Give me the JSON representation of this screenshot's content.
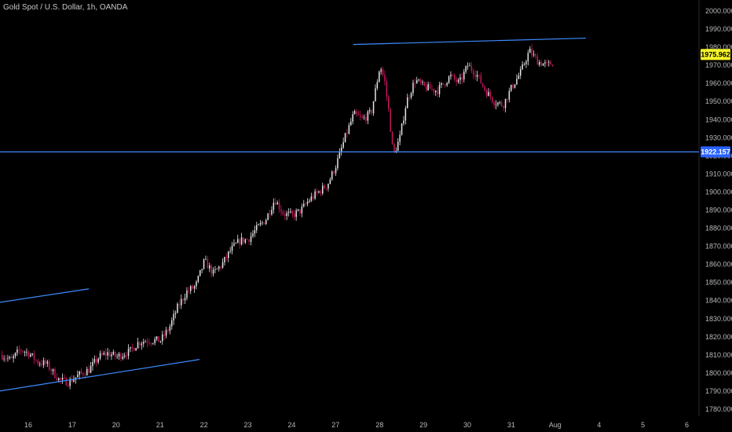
{
  "header": {
    "title": "Gold Spot / U.S. Dollar, 1h, OANDA"
  },
  "chart_data": {
    "type": "candlestick",
    "title": "Gold Spot / U.S. Dollar, 1h, OANDA",
    "y_ticks": [
      "2000.000",
      "1990.000",
      "1980.000",
      "1970.000",
      "1960.000",
      "1950.000",
      "1940.000",
      "1930.000",
      "1920.000",
      "1910.000",
      "1900.000",
      "1890.000",
      "1880.000",
      "1870.000",
      "1860.000",
      "1850.000",
      "1840.000",
      "1830.000",
      "1820.000",
      "1810.000",
      "1800.000",
      "1790.000",
      "1780.000"
    ],
    "x_ticks": [
      "16",
      "17",
      "20",
      "21",
      "22",
      "23",
      "24",
      "27",
      "28",
      "29",
      "30",
      "31",
      "Aug",
      "4",
      "5",
      "6"
    ],
    "ylim": [
      1776,
      2003
    ],
    "price_labels": [
      {
        "text": "1975.962",
        "value": 1975.962,
        "bg": "#f5f52a",
        "fg": "#000000"
      },
      {
        "text": "1922.157",
        "value": 1922.157,
        "bg": "#2962ff",
        "fg": "#ffffff"
      }
    ],
    "lines": [
      {
        "name": "resistance-trendline",
        "x1": 7.4,
        "y1": 1981.5,
        "x2": 12.7,
        "y2": 1985.0,
        "color": "#3d8bfd"
      },
      {
        "name": "horizontal-support-line",
        "x1": -0.8,
        "y1": 1922.157,
        "x2": 16.5,
        "y2": 1922.157,
        "color": "#3d8bfd"
      },
      {
        "name": "upper-channel-line",
        "x1": -0.8,
        "y1": 1838.5,
        "x2": 1.38,
        "y2": 1846.5,
        "color": "#3d8bfd"
      },
      {
        "name": "lower-channel-line",
        "x1": -0.8,
        "y1": 1789.5,
        "x2": 3.9,
        "y2": 1807.5,
        "color": "#3d8bfd"
      }
    ],
    "ohlc_waypoints": [
      [
        -0.62,
        1810
      ],
      [
        -0.4,
        1807
      ],
      [
        -0.2,
        1813
      ],
      [
        0.0,
        1811
      ],
      [
        0.2,
        1806
      ],
      [
        0.4,
        1805
      ],
      [
        0.7,
        1796
      ],
      [
        0.9,
        1795
      ],
      [
        1.15,
        1799
      ],
      [
        1.38,
        1802
      ],
      [
        1.6,
        1809
      ],
      [
        1.8,
        1811
      ],
      [
        2.0,
        1809
      ],
      [
        2.3,
        1812
      ],
      [
        2.5,
        1817
      ],
      [
        2.7,
        1818
      ],
      [
        3.0,
        1818
      ],
      [
        3.2,
        1825
      ],
      [
        3.4,
        1837
      ],
      [
        3.6,
        1845
      ],
      [
        3.8,
        1848
      ],
      [
        4.0,
        1862
      ],
      [
        4.2,
        1855
      ],
      [
        4.4,
        1860
      ],
      [
        4.6,
        1868
      ],
      [
        4.8,
        1873
      ],
      [
        5.0,
        1874
      ],
      [
        5.2,
        1880
      ],
      [
        5.4,
        1885
      ],
      [
        5.6,
        1896
      ],
      [
        5.8,
        1888
      ],
      [
        6.0,
        1887
      ],
      [
        6.2,
        1890
      ],
      [
        6.4,
        1896
      ],
      [
        6.6,
        1900
      ],
      [
        6.8,
        1904
      ],
      [
        7.0,
        1915
      ],
      [
        7.2,
        1930
      ],
      [
        7.4,
        1943
      ],
      [
        7.6,
        1940
      ],
      [
        7.8,
        1944
      ],
      [
        8.0,
        1970
      ],
      [
        8.1,
        1962
      ],
      [
        8.2,
        1944
      ],
      [
        8.3,
        1920
      ],
      [
        8.45,
        1930
      ],
      [
        8.6,
        1950
      ],
      [
        8.8,
        1962
      ],
      [
        9.0,
        1958
      ],
      [
        9.3,
        1956
      ],
      [
        9.6,
        1964
      ],
      [
        9.8,
        1960
      ],
      [
        10.0,
        1970
      ],
      [
        10.2,
        1965
      ],
      [
        10.4,
        1956
      ],
      [
        10.6,
        1950
      ],
      [
        10.8,
        1948
      ],
      [
        11.0,
        1958
      ],
      [
        11.2,
        1966
      ],
      [
        11.4,
        1978
      ],
      [
        11.6,
        1972
      ],
      [
        11.8,
        1970
      ],
      [
        12.0,
        1972
      ],
      [
        12.1,
        1976
      ]
    ]
  }
}
